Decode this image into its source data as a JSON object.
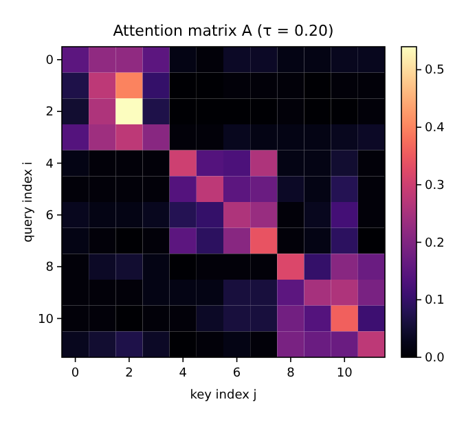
{
  "chart_data": {
    "type": "heatmap",
    "title": "Attention matrix A  (τ = 0.20)",
    "xlabel": "key index j",
    "ylabel": "query index i",
    "categories": [
      "0",
      null,
      "2",
      null,
      "4",
      null,
      "6",
      null,
      "8",
      null,
      "10",
      null
    ],
    "y_categories": [
      "0",
      null,
      "2",
      null,
      "4",
      null,
      "6",
      null,
      "8",
      null,
      "10",
      null
    ],
    "cells": [
      [
        0.15,
        0.22,
        0.22,
        0.15,
        0.02,
        0.01,
        0.04,
        0.04,
        0.02,
        0.02,
        0.03,
        0.03
      ],
      [
        0.07,
        0.28,
        0.4,
        0.1,
        0.0,
        0.0,
        0.01,
        0.01,
        0.01,
        0.0,
        0.01,
        0.01
      ],
      [
        0.05,
        0.26,
        0.54,
        0.07,
        0.0,
        0.0,
        0.0,
        0.0,
        0.01,
        0.0,
        0.0,
        0.01
      ],
      [
        0.14,
        0.24,
        0.28,
        0.21,
        0.01,
        0.01,
        0.03,
        0.02,
        0.02,
        0.02,
        0.03,
        0.04
      ],
      [
        0.02,
        0.01,
        0.01,
        0.01,
        0.3,
        0.14,
        0.13,
        0.26,
        0.02,
        0.02,
        0.05,
        0.01
      ],
      [
        0.01,
        0.01,
        0.01,
        0.01,
        0.14,
        0.28,
        0.15,
        0.17,
        0.04,
        0.02,
        0.08,
        0.01
      ],
      [
        0.03,
        0.02,
        0.02,
        0.03,
        0.08,
        0.1,
        0.26,
        0.23,
        0.01,
        0.03,
        0.12,
        0.01
      ],
      [
        0.02,
        0.01,
        0.0,
        0.01,
        0.15,
        0.09,
        0.21,
        0.34,
        0.01,
        0.02,
        0.09,
        0.0
      ],
      [
        0.01,
        0.04,
        0.05,
        0.02,
        0.0,
        0.01,
        0.01,
        0.01,
        0.32,
        0.1,
        0.21,
        0.17
      ],
      [
        0.01,
        0.01,
        0.01,
        0.02,
        0.02,
        0.02,
        0.06,
        0.06,
        0.15,
        0.25,
        0.26,
        0.19
      ],
      [
        0.01,
        0.01,
        0.0,
        0.01,
        0.01,
        0.04,
        0.06,
        0.06,
        0.18,
        0.14,
        0.36,
        0.11
      ],
      [
        0.03,
        0.05,
        0.07,
        0.04,
        0.0,
        0.01,
        0.02,
        0.01,
        0.19,
        0.17,
        0.17,
        0.28
      ]
    ],
    "clim": [
      0,
      0.54
    ],
    "cticks": [
      {
        "value": 0,
        "label": "0.0"
      },
      {
        "value": 0.1,
        "label": "0.1"
      },
      {
        "value": 0.2,
        "label": "0.2"
      },
      {
        "value": 0.3,
        "label": "0.3"
      },
      {
        "value": 0.4,
        "label": "0.4"
      },
      {
        "value": 0.5,
        "label": "0.5"
      }
    ]
  }
}
